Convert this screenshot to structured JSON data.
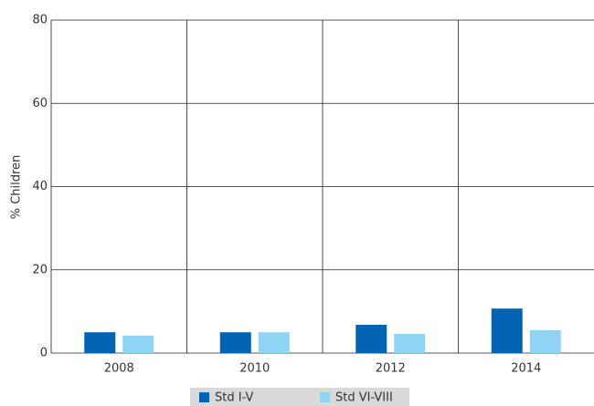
{
  "chart_data": {
    "type": "bar",
    "y_label": "% Children",
    "categories": [
      "2008",
      "2010",
      "2012",
      "2014"
    ],
    "series": [
      {
        "name": "Std I-V",
        "color": "#0563b4",
        "values": [
          5.0,
          5.0,
          6.8,
          10.7
        ]
      },
      {
        "name": "Std VI-VIII",
        "color": "#8fd3f5",
        "values": [
          4.2,
          5.0,
          4.6,
          5.5
        ]
      }
    ],
    "ylim": [
      0,
      80
    ],
    "yticks": [
      0,
      20,
      40,
      60,
      80
    ],
    "grid": true,
    "legend": "bottom"
  }
}
